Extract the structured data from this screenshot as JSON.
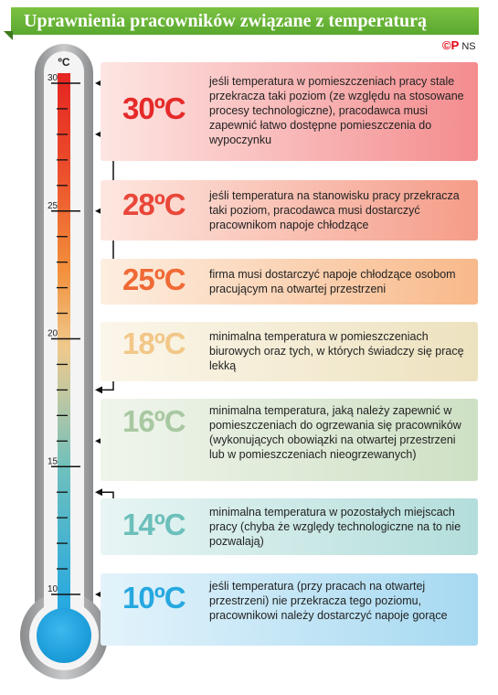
{
  "header": {
    "title": "Uprawnienia pracowników związane z temperaturą"
  },
  "logo": {
    "mark": "©P",
    "text": "NS"
  },
  "thermometer": {
    "unit": "ºC",
    "scale": {
      "min": 8.5,
      "max": 30,
      "labeled_ticks": [
        30,
        25,
        20,
        15,
        10
      ]
    }
  },
  "items": [
    {
      "value": 30,
      "temp": "30ºC",
      "color": "#e52a2a",
      "bg_left": "#fde6e3",
      "bg_right": "#f48c8e",
      "desc": "jeśli temperatura w pomieszczeniach pracy stale przekracza taki poziom (ze względu na stosowane procesy technologiczne), pracodawca musi zapewnić łatwo dostępne pomieszczenia do wypoczynku"
    },
    {
      "value": 28,
      "temp": "28ºC",
      "color": "#e9473a",
      "bg_left": "#fde7e0",
      "bg_right": "#f59c88",
      "desc": "jeśli temperatura na stanowisku pracy przekracza taki poziom, pracodawca musi dostarczyć pracownikom napoje chłodzące"
    },
    {
      "value": 25,
      "temp": "25ºC",
      "color": "#f06a35",
      "bg_left": "#fdeee0",
      "bg_right": "#f8b98a",
      "desc": "firma musi dostarczyć napoje chłodzące osobom pracującym na otwartej przestrzeni"
    },
    {
      "value": 18,
      "temp": "18ºC",
      "color": "#f2c788",
      "bg_left": "#fbf6ea",
      "bg_right": "#ede2bf",
      "desc": "minimalna temperatura w pomieszczeniach biurowych oraz tych, w których świadczy się pracę lekką"
    },
    {
      "value": 16,
      "temp": "16ºC",
      "color": "#a8c8a2",
      "bg_left": "#f0f5ec",
      "bg_right": "#cee0c4",
      "desc": "minimalna temperatura, jaką należy zapewnić w pomieszczeniach do ogrzewania się pracowników (wykonujących obowiązki na otwartej przestrzeni lub w pomieszczeniach nieogrzewanych)"
    },
    {
      "value": 14,
      "temp": "14ºC",
      "color": "#6cbfba",
      "bg_left": "#e8f5f4",
      "bg_right": "#b3dedb",
      "desc": "minimalna temperatura w pozostałych miejscach pracy (chyba że względy technologiczne na to nie pozwalają)"
    },
    {
      "value": 10,
      "temp": "10ºC",
      "color": "#26a8e0",
      "bg_left": "#e3f3fb",
      "bg_right": "#a6d9f1",
      "desc": "jeśli temperatura (przy pracach na otwartej przestrzeni) nie przekracza tego poziomu, pracownikowi należy dostarczyć napoje gorące"
    }
  ]
}
